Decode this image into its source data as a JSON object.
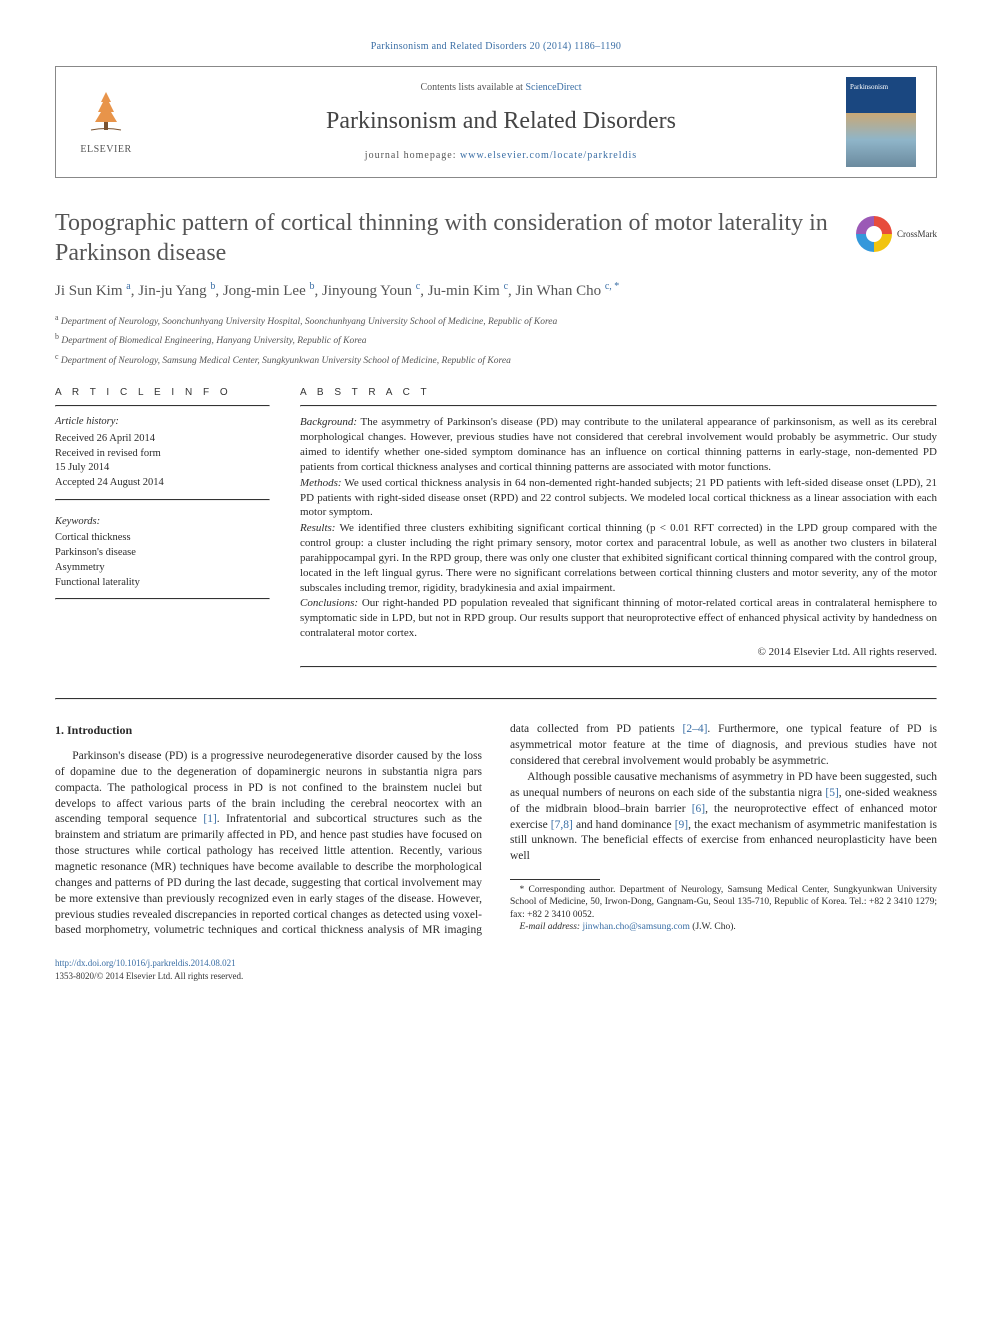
{
  "citation": "Parkinsonism and Related Disorders 20 (2014) 1186–1190",
  "header": {
    "contents_prefix": "Contents lists available at ",
    "contents_link": "ScienceDirect",
    "journal": "Parkinsonism and Related Disorders",
    "homepage_prefix": "journal homepage: ",
    "homepage_url": "www.elsevier.com/locate/parkreldis",
    "publisher_logo_text": "ELSEVIER"
  },
  "article": {
    "title": "Topographic pattern of cortical thinning with consideration of motor laterality in Parkinson disease",
    "crossmark": "CrossMark",
    "authors_html": "Ji Sun Kim <sup>a</sup>, Jin-ju Yang <sup>b</sup>, Jong-min Lee <sup>b</sup>, Jinyoung Youn <sup>c</sup>, Ju-min Kim <sup>c</sup>, Jin Whan Cho <sup class='corr'>c, *</sup>",
    "affiliations": [
      {
        "sup": "a",
        "text": "Department of Neurology, Soonchunhyang University Hospital, Soonchunhyang University School of Medicine, Republic of Korea"
      },
      {
        "sup": "b",
        "text": "Department of Biomedical Engineering, Hanyang University, Republic of Korea"
      },
      {
        "sup": "c",
        "text": "Department of Neurology, Samsung Medical Center, Sungkyunkwan University School of Medicine, Republic of Korea"
      }
    ]
  },
  "article_info": {
    "label": "A R T I C L E   I N F O",
    "history_label": "Article history:",
    "history": [
      "Received 26 April 2014",
      "Received in revised form",
      "15 July 2014",
      "Accepted 24 August 2014"
    ],
    "keywords_label": "Keywords:",
    "keywords": [
      "Cortical thickness",
      "Parkinson's disease",
      "Asymmetry",
      "Functional laterality"
    ]
  },
  "abstract": {
    "label": "A B S T R A C T",
    "paras": [
      {
        "head": "Background:",
        "text": " The asymmetry of Parkinson's disease (PD) may contribute to the unilateral appearance of parkinsonism, as well as its cerebral morphological changes. However, previous studies have not considered that cerebral involvement would probably be asymmetric. Our study aimed to identify whether one-sided symptom dominance has an influence on cortical thinning patterns in early-stage, non-demented PD patients from cortical thickness analyses and cortical thinning patterns are associated with motor functions."
      },
      {
        "head": "Methods:",
        "text": " We used cortical thickness analysis in 64 non-demented right-handed subjects; 21 PD patients with left-sided disease onset (LPD), 21 PD patients with right-sided disease onset (RPD) and 22 control subjects. We modeled local cortical thickness as a linear association with each motor symptom."
      },
      {
        "head": "Results:",
        "text": " We identified three clusters exhibiting significant cortical thinning (p < 0.01 RFT corrected) in the LPD group compared with the control group: a cluster including the right primary sensory, motor cortex and paracentral lobule, as well as another two clusters in bilateral parahippocampal gyri. In the RPD group, there was only one cluster that exhibited significant cortical thinning compared with the control group, located in the left lingual gyrus. There were no significant correlations between cortical thinning clusters and motor severity, any of the motor subscales including tremor, rigidity, bradykinesia and axial impairment."
      },
      {
        "head": "Conclusions:",
        "text": " Our right-handed PD population revealed that significant thinning of motor-related cortical areas in contralateral hemisphere to symptomatic side in LPD, but not in RPD group. Our results support that neuroprotective effect of enhanced physical activity by handedness on contralateral motor cortex."
      }
    ],
    "copyright": "© 2014 Elsevier Ltd. All rights reserved."
  },
  "body": {
    "section_heading": "1. Introduction",
    "col1_p1": "Parkinson's disease (PD) is a progressive neurodegenerative disorder caused by the loss of dopamine due to the degeneration of dopaminergic neurons in substantia nigra pars compacta. The pathological process in PD is not confined to the brainstem nuclei but develops to affect various parts of the brain including the cerebral neocortex with an ascending temporal sequence ",
    "ref1": "[1]",
    "col1_p1b": ". Infratentorial and subcortical structures such as the brainstem and striatum are primarily affected in PD, and hence past studies have focused on those structures while cortical pathology has received little attention. Recently, various magnetic resonance (MR)",
    "col2_p1": "techniques have become available to describe the morphological changes and patterns of PD during the last decade, suggesting that cortical involvement may be more extensive than previously recognized even in early stages of the disease. However, previous studies revealed discrepancies in reported cortical changes as detected using voxel-based morphometry, volumetric techniques and cortical thickness analysis of MR imaging data collected from PD patients ",
    "ref24": "[2–4]",
    "col2_p1b": ". Furthermore, one typical feature of PD is asymmetrical motor feature at the time of diagnosis, and previous studies have not considered that cerebral involvement would probably be asymmetric.",
    "col2_p2a": "Although possible causative mechanisms of asymmetry in PD have been suggested, such as unequal numbers of neurons on each side of the substantia nigra ",
    "ref5": "[5]",
    "col2_p2b": ", one-sided weakness of the midbrain blood–brain barrier ",
    "ref6": "[6]",
    "col2_p2c": ", the neuroprotective effect of enhanced motor exercise ",
    "ref78": "[7,8]",
    "col2_p2d": " and hand dominance ",
    "ref9": "[9]",
    "col2_p2e": ", the exact mechanism of asymmetric manifestation is still unknown. The beneficial effects of exercise from enhanced neuroplasticity have been well"
  },
  "footnote": {
    "corr_text": "* Corresponding author. Department of Neurology, Samsung Medical Center, Sungkyunkwan University School of Medicine, 50, Irwon-Dong, Gangnam-Gu, Seoul 135-710, Republic of Korea. Tel.: +82 2 3410 1279; fax: +82 2 3410 0052.",
    "email_label": "E-mail address: ",
    "email": "jinwhan.cho@samsung.com",
    "email_suffix": " (J.W. Cho)."
  },
  "footer": {
    "doi": "http://dx.doi.org/10.1016/j.parkreldis.2014.08.021",
    "issn_line": "1353-8020/© 2014 Elsevier Ltd. All rights reserved."
  }
}
